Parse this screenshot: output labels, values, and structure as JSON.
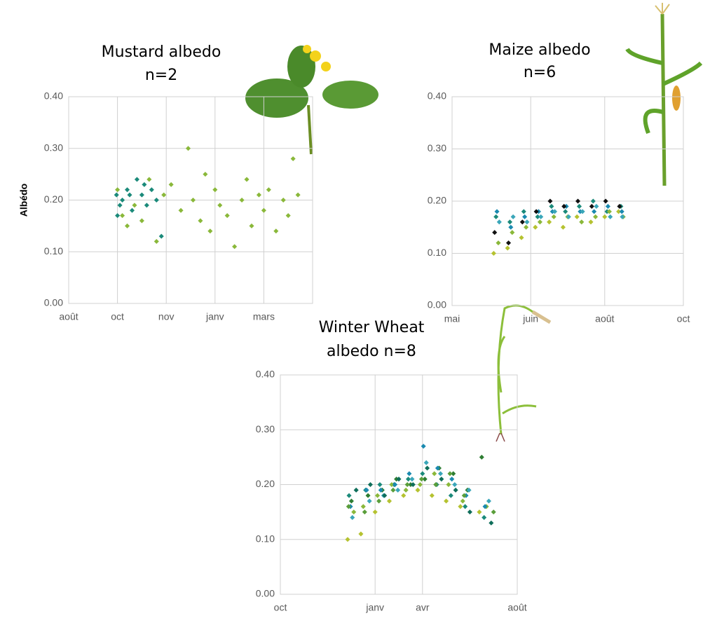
{
  "chart_data": [
    {
      "type": "scatter",
      "title": "Mustard  albedo",
      "subtitle": "n=2",
      "ylabel": "Albédo",
      "xlim": [
        0,
        5
      ],
      "xticks": [
        {
          "value": 0,
          "label": "août"
        },
        {
          "value": 1,
          "label": "oct"
        },
        {
          "value": 2,
          "label": "nov"
        },
        {
          "value": 3,
          "label": "janv"
        },
        {
          "value": 4,
          "label": "mars"
        }
      ],
      "ylim": [
        0,
        0.4
      ],
      "yticks": [
        {
          "value": 0,
          "label": "0.00"
        },
        {
          "value": 0.1,
          "label": "0.10"
        },
        {
          "value": 0.2,
          "label": "0.20"
        },
        {
          "value": 0.3,
          "label": "0.30"
        },
        {
          "value": 0.4,
          "label": "0.40"
        }
      ],
      "grid": true,
      "series": [
        {
          "color": "#1b8a7a",
          "x": [
            0.98,
            1.0,
            1.05,
            1.1,
            1.2,
            1.3,
            1.4,
            1.5,
            1.6,
            1.7,
            1.8,
            1.9,
            1.25,
            1.55
          ],
          "values": [
            0.21,
            0.17,
            0.19,
            0.2,
            0.22,
            0.18,
            0.24,
            0.21,
            0.19,
            0.22,
            0.2,
            0.13,
            0.21,
            0.23
          ]
        },
        {
          "color": "#8ab83a",
          "x": [
            1.0,
            1.1,
            1.2,
            1.35,
            1.5,
            1.65,
            1.8,
            1.95,
            2.1,
            2.3,
            2.45,
            2.55,
            2.7,
            2.8,
            2.9,
            3.0,
            3.1,
            3.25,
            3.4,
            3.55,
            3.65,
            3.75,
            3.9,
            4.0,
            4.1,
            4.25,
            4.4,
            4.5,
            4.6,
            4.7
          ],
          "values": [
            0.22,
            0.17,
            0.15,
            0.19,
            0.16,
            0.24,
            0.12,
            0.21,
            0.23,
            0.18,
            0.3,
            0.2,
            0.16,
            0.25,
            0.14,
            0.22,
            0.19,
            0.17,
            0.11,
            0.2,
            0.24,
            0.15,
            0.21,
            0.18,
            0.22,
            0.14,
            0.2,
            0.17,
            0.28,
            0.21
          ]
        }
      ]
    },
    {
      "type": "scatter",
      "title": "Maize albedo",
      "subtitle": "n=6",
      "xlim": [
        0,
        5
      ],
      "xticks": [
        {
          "value": 0,
          "label": "mai"
        },
        {
          "value": 1.7,
          "label": "juin"
        },
        {
          "value": 3.3,
          "label": "août"
        },
        {
          "value": 5,
          "label": "oct"
        }
      ],
      "ylim": [
        0,
        0.4
      ],
      "yticks": [
        {
          "value": 0,
          "label": "0.00"
        },
        {
          "value": 0.1,
          "label": "0.10"
        },
        {
          "value": 0.2,
          "label": "0.20"
        },
        {
          "value": 0.3,
          "label": "0.30"
        },
        {
          "value": 0.4,
          "label": "0.40"
        }
      ],
      "grid": true,
      "series": [
        {
          "color": "#1b8a7a",
          "x": [
            0.95,
            1.25,
            1.55,
            1.85,
            2.15,
            2.45,
            2.75,
            3.05,
            3.35,
            3.65
          ],
          "values": [
            0.17,
            0.16,
            0.18,
            0.17,
            0.19,
            0.18,
            0.19,
            0.2,
            0.18,
            0.19
          ]
        },
        {
          "color": "#8ab83a",
          "x": [
            1.0,
            1.3,
            1.6,
            1.9,
            2.2,
            2.5,
            2.8,
            3.1,
            3.4,
            3.7
          ],
          "values": [
            0.12,
            0.14,
            0.15,
            0.16,
            0.17,
            0.17,
            0.16,
            0.17,
            0.18,
            0.17
          ]
        },
        {
          "color": "#b5c230",
          "x": [
            0.9,
            1.2,
            1.5,
            1.8,
            2.1,
            2.4,
            2.7,
            3.0,
            3.3,
            3.6
          ],
          "values": [
            0.1,
            0.11,
            0.13,
            0.15,
            0.16,
            0.15,
            0.17,
            0.16,
            0.17,
            0.18
          ]
        },
        {
          "color": "#1a8ab0",
          "x": [
            0.97,
            1.27,
            1.57,
            1.87,
            2.17,
            2.47,
            2.77,
            3.07,
            3.37,
            3.67
          ],
          "values": [
            0.18,
            0.15,
            0.17,
            0.18,
            0.18,
            0.19,
            0.18,
            0.18,
            0.19,
            0.18
          ]
        },
        {
          "color": "#111111",
          "x": [
            0.92,
            1.22,
            1.52,
            1.82,
            2.12,
            2.42,
            2.72,
            3.02,
            3.32,
            3.62
          ],
          "values": [
            0.14,
            0.12,
            0.16,
            0.18,
            0.2,
            0.19,
            0.2,
            0.19,
            0.2,
            0.19
          ]
        },
        {
          "color": "#3aa6b9",
          "x": [
            1.02,
            1.32,
            1.62,
            1.92,
            2.22,
            2.52,
            2.82,
            3.12,
            3.42,
            3.68
          ],
          "values": [
            0.16,
            0.17,
            0.16,
            0.17,
            0.18,
            0.17,
            0.18,
            0.19,
            0.17,
            0.17
          ]
        }
      ]
    },
    {
      "type": "scatter",
      "title": "Winter Wheat",
      "subtitle": "albedo n=8",
      "xlim": [
        0,
        5
      ],
      "xticks": [
        {
          "value": 0,
          "label": "oct"
        },
        {
          "value": 2,
          "label": "janv"
        },
        {
          "value": 3,
          "label": "avr"
        },
        {
          "value": 5,
          "label": "août"
        }
      ],
      "ylim": [
        0,
        0.4
      ],
      "yticks": [
        {
          "value": 0,
          "label": "0.00"
        },
        {
          "value": 0.1,
          "label": "0.10"
        },
        {
          "value": 0.2,
          "label": "0.20"
        },
        {
          "value": 0.3,
          "label": "0.30"
        },
        {
          "value": 0.4,
          "label": "0.40"
        }
      ],
      "grid": true,
      "series": [
        {
          "color": "#1b8a7a",
          "x": [
            1.45,
            1.8,
            2.1,
            2.4,
            2.7,
            3.0,
            3.3,
            3.6,
            3.9,
            4.3
          ],
          "values": [
            0.18,
            0.19,
            0.2,
            0.2,
            0.21,
            0.22,
            0.2,
            0.18,
            0.16,
            0.14
          ]
        },
        {
          "color": "#2e7d32",
          "x": [
            1.5,
            1.85,
            2.15,
            2.45,
            2.75,
            3.05,
            3.35,
            3.65,
            3.95,
            4.25
          ],
          "values": [
            0.17,
            0.18,
            0.19,
            0.21,
            0.2,
            0.21,
            0.23,
            0.22,
            0.19,
            0.25
          ]
        },
        {
          "color": "#8ab83a",
          "x": [
            1.55,
            1.75,
            2.05,
            2.35,
            2.65,
            2.95,
            3.25,
            3.55,
            3.85,
            4.35
          ],
          "values": [
            0.15,
            0.16,
            0.18,
            0.2,
            0.19,
            0.2,
            0.22,
            0.2,
            0.17,
            0.16
          ]
        },
        {
          "color": "#b5c230",
          "x": [
            1.42,
            1.7,
            2.0,
            2.3,
            2.6,
            2.9,
            3.2,
            3.5,
            3.8,
            4.2
          ],
          "values": [
            0.1,
            0.11,
            0.15,
            0.17,
            0.18,
            0.19,
            0.18,
            0.17,
            0.16,
            0.15
          ]
        },
        {
          "color": "#1a8ab0",
          "x": [
            1.48,
            1.82,
            2.12,
            2.42,
            2.72,
            3.02,
            3.32,
            3.62,
            3.92,
            4.32
          ],
          "values": [
            0.16,
            0.19,
            0.19,
            0.2,
            0.22,
            0.27,
            0.23,
            0.21,
            0.18,
            0.16
          ]
        },
        {
          "color": "#3aa6b9",
          "x": [
            1.52,
            1.88,
            2.18,
            2.48,
            2.78,
            3.08,
            3.38,
            3.68,
            3.98,
            4.4
          ],
          "values": [
            0.14,
            0.17,
            0.18,
            0.19,
            0.21,
            0.24,
            0.22,
            0.2,
            0.19,
            0.17
          ]
        },
        {
          "color": "#0f6e5a",
          "x": [
            1.6,
            1.9,
            2.2,
            2.5,
            2.8,
            3.1,
            3.4,
            3.7,
            4.0,
            4.45
          ],
          "values": [
            0.19,
            0.2,
            0.18,
            0.21,
            0.2,
            0.23,
            0.21,
            0.19,
            0.15,
            0.13
          ]
        },
        {
          "color": "#5a9e3a",
          "x": [
            1.44,
            1.78,
            2.08,
            2.38,
            2.68,
            2.98,
            3.28,
            3.58,
            3.88,
            4.5
          ],
          "values": [
            0.16,
            0.15,
            0.17,
            0.19,
            0.2,
            0.21,
            0.2,
            0.22,
            0.18,
            0.15
          ]
        }
      ]
    }
  ]
}
